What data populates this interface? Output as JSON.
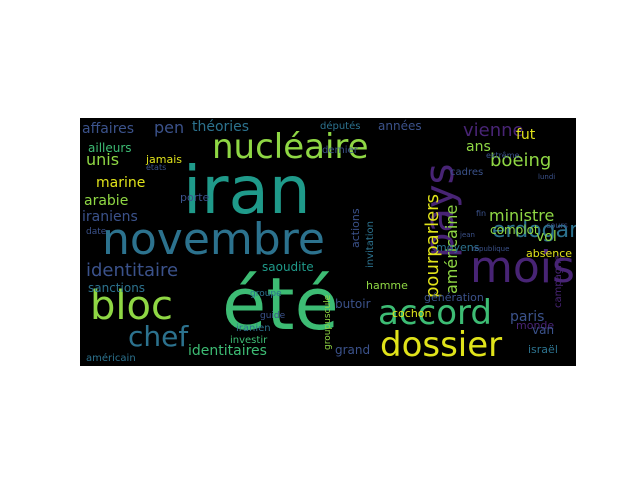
{
  "palette": {
    "background": "#000000",
    "yellow": "#e0e31a",
    "lime": "#8fd744",
    "green": "#3dbc74",
    "teal": "#1f9a8a",
    "blue": "#2c728e",
    "indigo": "#3b528b",
    "purple": "#482475",
    "violet": "#440154"
  },
  "words": [
    "iran",
    "été",
    "novembre",
    "mois",
    "pays",
    "nucléaire",
    "bloc",
    "accord",
    "dossier",
    "chef",
    "erdogan",
    "américaine",
    "pourparlers",
    "identitaire",
    "vienne",
    "boeing",
    "ministre",
    "unis",
    "arabie",
    "iraniens",
    "marine",
    "pen",
    "théories",
    "affaires",
    "ans",
    "fut",
    "vol",
    "complot",
    "paris",
    "sanctions",
    "saoudite",
    "identitaires",
    "grand",
    "années",
    "butoir",
    "actions",
    "hamme",
    "invitation",
    "cochon",
    "génération",
    "monde",
    "moyens",
    "absence",
    "députés",
    "porte",
    "jamais",
    "ailleurs",
    "guide",
    "investir",
    "dernier",
    "américain",
    "iranien",
    "groupe",
    "groupuscule",
    "israël",
    "cadres",
    "van",
    "campagne",
    "date",
    "extrême",
    "lundi",
    "cours",
    "états",
    "fin",
    "jean",
    "république"
  ]
}
